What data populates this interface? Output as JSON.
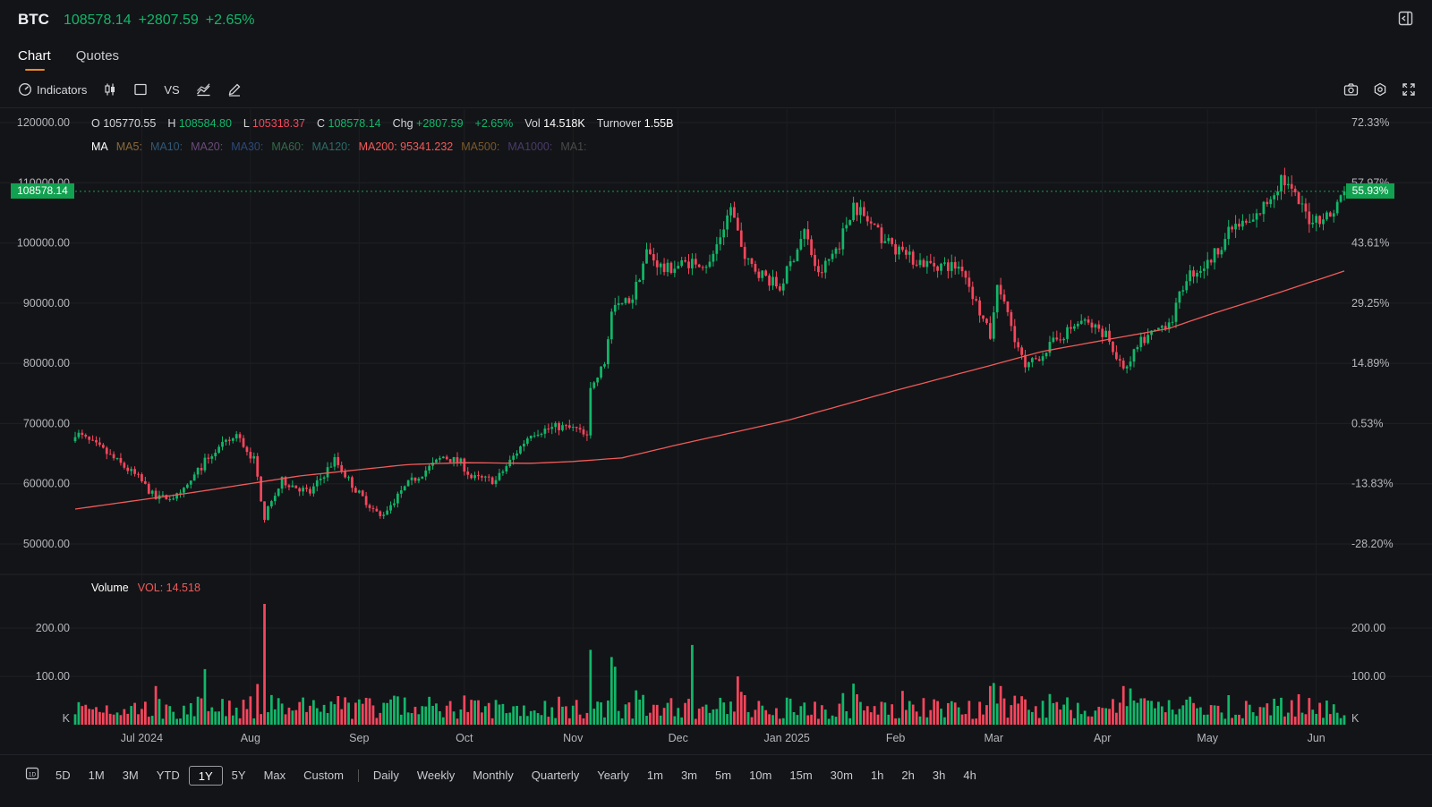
{
  "header": {
    "symbol": "BTC",
    "price": "108578.14",
    "change": "+2807.59",
    "change_pct": "+2.65%"
  },
  "tabs": [
    "Chart",
    "Quotes"
  ],
  "toolbar": {
    "indicators_label": "Indicators",
    "vs_label": "VS"
  },
  "ohlc": {
    "o_label": "O",
    "o": "105770.55",
    "h_label": "H",
    "h": "108584.80",
    "l_label": "L",
    "l": "105318.37",
    "c_label": "C",
    "c": "108578.14",
    "chg_label": "Chg",
    "chg": "+2807.59",
    "chg_pct": "+2.65%",
    "vol_label": "Vol",
    "vol": "14.518K",
    "turnover_label": "Turnover",
    "turnover": "1.55B"
  },
  "ma_legend": {
    "title": "MA",
    "items": [
      {
        "label": "MA5:",
        "color": "#8a6a3a"
      },
      {
        "label": "MA10:",
        "color": "#2f5878"
      },
      {
        "label": "MA20:",
        "color": "#6a4a7a"
      },
      {
        "label": "MA30:",
        "color": "#2c4a7a"
      },
      {
        "label": "MA60:",
        "color": "#356a4a"
      },
      {
        "label": "MA120:",
        "color": "#2c6a6a"
      },
      {
        "label": "MA200: 95341.232",
        "color": "#f05a5a"
      },
      {
        "label": "MA500:",
        "color": "#7a5a2a"
      },
      {
        "label": "MA1000:",
        "color": "#4a3a6a"
      },
      {
        "label": "MA1:",
        "color": "#4a4a4a"
      }
    ]
  },
  "volume_legend": {
    "title": "Volume",
    "value": "VOL: 14.518"
  },
  "last_price_tag": "108578.14",
  "last_pct_tag": "55.93%",
  "bottom": {
    "ranges": [
      "5D",
      "1M",
      "3M",
      "YTD",
      "1Y",
      "5Y",
      "Max",
      "Custom"
    ],
    "selected": "1Y",
    "periods": [
      "Daily",
      "Weekly",
      "Monthly",
      "Quarterly",
      "Yearly",
      "1m",
      "3m",
      "5m",
      "10m",
      "15m",
      "30m",
      "1h",
      "2h",
      "3h",
      "4h"
    ]
  },
  "colors": {
    "up": "#12b76a",
    "down": "#f6465d",
    "ma200": "#f05a5a",
    "background": "#131417"
  },
  "chart_data": {
    "type": "candlestick",
    "price_axis": {
      "ylim": [
        45000,
        122000
      ],
      "ticks": [
        50000,
        60000,
        70000,
        80000,
        90000,
        100000,
        110000,
        120000
      ],
      "tick_labels": [
        "50000.00",
        "60000.00",
        "70000.00",
        "80000.00",
        "90000.00",
        "100000.00",
        "110000.00",
        "120000.00"
      ]
    },
    "pct_axis": {
      "tick_labels": [
        "-28.20%",
        "-13.83%",
        "0.53%",
        "14.89%",
        "29.25%",
        "43.61%",
        "57.97%",
        "72.33%"
      ]
    },
    "x_axis": {
      "labels": [
        "Jul 2024",
        "Aug",
        "Sep",
        "Oct",
        "Nov",
        "Dec",
        "Jan 2025",
        "Feb",
        "Mar",
        "Apr",
        "May",
        "Jun"
      ],
      "dates": [
        "2024-07-01",
        "2024-08-01",
        "2024-09-01",
        "2024-10-01",
        "2024-11-01",
        "2024-12-01",
        "2025-01-01",
        "2025-02-01",
        "2025-03-01",
        "2025-04-01",
        "2025-05-01",
        "2025-06-01"
      ],
      "range": [
        "2024-06-12",
        "2025-06-09"
      ]
    },
    "close_anchors": [
      [
        "2024-06-12",
        68500
      ],
      [
        "2024-06-20",
        65500
      ],
      [
        "2024-06-30",
        61000
      ],
      [
        "2024-07-05",
        57500
      ],
      [
        "2024-07-12",
        58000
      ],
      [
        "2024-07-20",
        64500
      ],
      [
        "2024-07-28",
        68000
      ],
      [
        "2024-08-02",
        64000
      ],
      [
        "2024-08-05",
        54500
      ],
      [
        "2024-08-10",
        60500
      ],
      [
        "2024-08-18",
        58500
      ],
      [
        "2024-08-25",
        64000
      ],
      [
        "2024-08-31",
        59000
      ],
      [
        "2024-09-07",
        54500
      ],
      [
        "2024-09-15",
        60000
      ],
      [
        "2024-09-25",
        64500
      ],
      [
        "2024-09-30",
        63500
      ],
      [
        "2024-10-03",
        61000
      ],
      [
        "2024-10-10",
        60500
      ],
      [
        "2024-10-20",
        68500
      ],
      [
        "2024-10-28",
        69500
      ],
      [
        "2024-11-02",
        69000
      ],
      [
        "2024-11-05",
        67500
      ],
      [
        "2024-11-06",
        75500
      ],
      [
        "2024-11-10",
        80000
      ],
      [
        "2024-11-12",
        88500
      ],
      [
        "2024-11-18",
        91000
      ],
      [
        "2024-11-22",
        98500
      ],
      [
        "2024-11-27",
        95500
      ],
      [
        "2024-12-05",
        97000
      ],
      [
        "2024-12-10",
        96500
      ],
      [
        "2024-12-16",
        106000
      ],
      [
        "2024-12-20",
        97000
      ],
      [
        "2024-12-30",
        92500
      ],
      [
        "2025-01-06",
        102000
      ],
      [
        "2025-01-10",
        94500
      ],
      [
        "2025-01-16",
        100000
      ],
      [
        "2025-01-20",
        106500
      ],
      [
        "2025-01-27",
        101500
      ],
      [
        "2025-02-03",
        98000
      ],
      [
        "2025-02-10",
        96500
      ],
      [
        "2025-02-20",
        96000
      ],
      [
        "2025-02-25",
        88500
      ],
      [
        "2025-02-28",
        84500
      ],
      [
        "2025-03-02",
        93500
      ],
      [
        "2025-03-10",
        79000
      ],
      [
        "2025-03-20",
        84500
      ],
      [
        "2025-03-26",
        87000
      ],
      [
        "2025-04-02",
        85000
      ],
      [
        "2025-04-07",
        78500
      ],
      [
        "2025-04-12",
        83500
      ],
      [
        "2025-04-21",
        87500
      ],
      [
        "2025-04-25",
        94500
      ],
      [
        "2025-05-01",
        96500
      ],
      [
        "2025-05-08",
        102500
      ],
      [
        "2025-05-14",
        103500
      ],
      [
        "2025-05-21",
        109500
      ],
      [
        "2025-05-22",
        111000
      ],
      [
        "2025-05-30",
        104000
      ],
      [
        "2025-06-05",
        104500
      ],
      [
        "2025-06-09",
        108578
      ]
    ],
    "ma200_anchors": [
      [
        "2024-06-12",
        55800
      ],
      [
        "2024-07-15",
        58500
      ],
      [
        "2024-08-15",
        61300
      ],
      [
        "2024-09-15",
        63200
      ],
      [
        "2024-10-01",
        63500
      ],
      [
        "2024-10-20",
        63400
      ],
      [
        "2024-11-01",
        63700
      ],
      [
        "2024-11-15",
        64300
      ],
      [
        "2024-12-01",
        66500
      ],
      [
        "2025-01-01",
        70500
      ],
      [
        "2025-02-01",
        75500
      ],
      [
        "2025-03-01",
        79800
      ],
      [
        "2025-03-15",
        82000
      ],
      [
        "2025-04-01",
        83800
      ],
      [
        "2025-04-20",
        85800
      ],
      [
        "2025-05-01",
        88000
      ],
      [
        "2025-05-20",
        91500
      ],
      [
        "2025-06-09",
        95341
      ]
    ],
    "volume_axis": {
      "ticks": [
        100,
        200
      ],
      "tick_labels": [
        "100.00",
        "200.00"
      ],
      "ylim": [
        0,
        260
      ],
      "unit_label": "K"
    },
    "volume_spikes": [
      [
        "2024-07-05",
        80
      ],
      [
        "2024-07-19",
        115
      ],
      [
        "2024-08-05",
        250
      ],
      [
        "2024-09-11",
        60
      ],
      [
        "2024-11-06",
        155
      ],
      [
        "2024-11-12",
        140
      ],
      [
        "2024-11-13",
        120
      ],
      [
        "2024-12-05",
        165
      ],
      [
        "2024-12-18",
        100
      ],
      [
        "2025-01-20",
        85
      ],
      [
        "2025-02-03",
        70
      ],
      [
        "2025-02-28",
        80
      ],
      [
        "2025-03-03",
        80
      ],
      [
        "2025-04-07",
        80
      ],
      [
        "2025-04-09",
        75
      ]
    ]
  }
}
